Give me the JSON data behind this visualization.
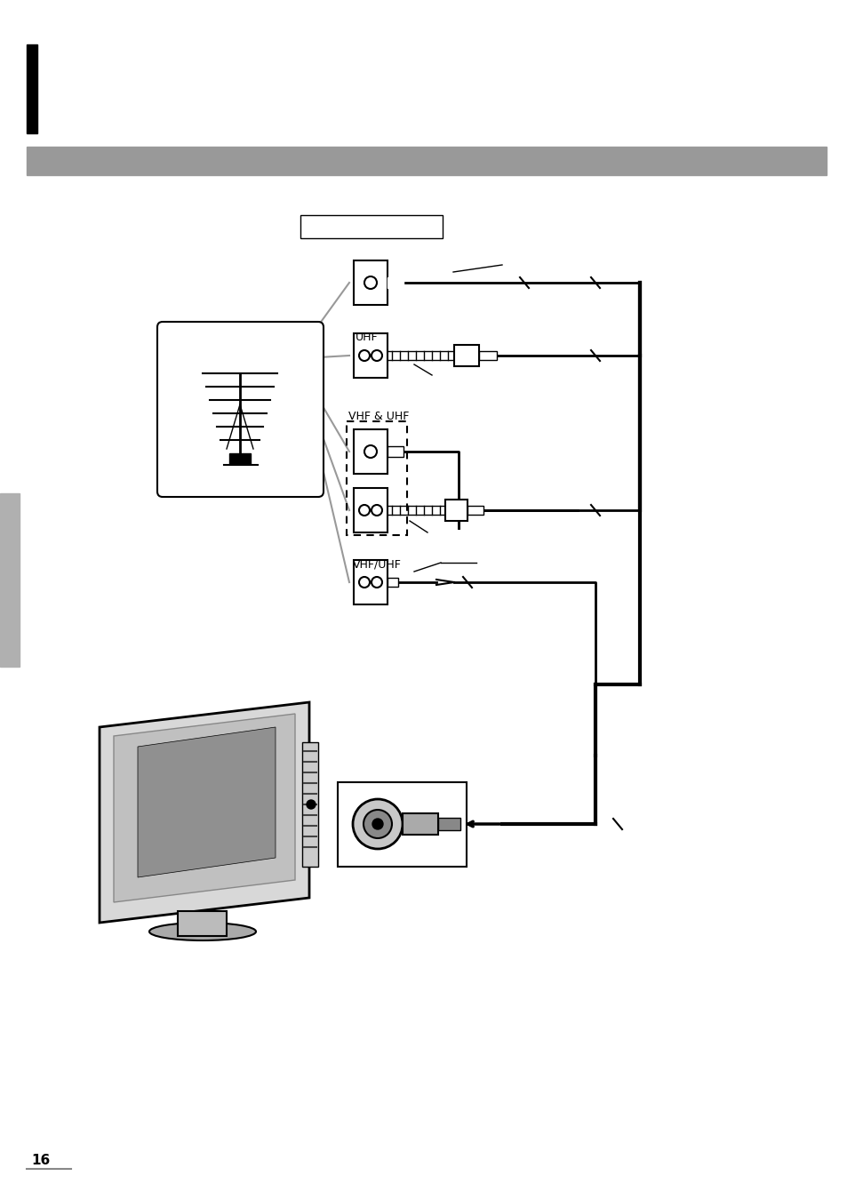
{
  "page_bg": "#ffffff",
  "black_bar_color": "#000000",
  "gray_bar_color": "#999999",
  "page_number": "16",
  "gray_sidebar_color": "#b0b0b0",
  "uhf_label": "UHF",
  "vhf_uhf_label": "VHF & UHF",
  "vhf_uhf2_label": "VHF/UHF",
  "line_color": "#000000",
  "gray_line_color": "#999999",
  "fig_w": 9.54,
  "fig_h": 13.5,
  "dpi": 100
}
